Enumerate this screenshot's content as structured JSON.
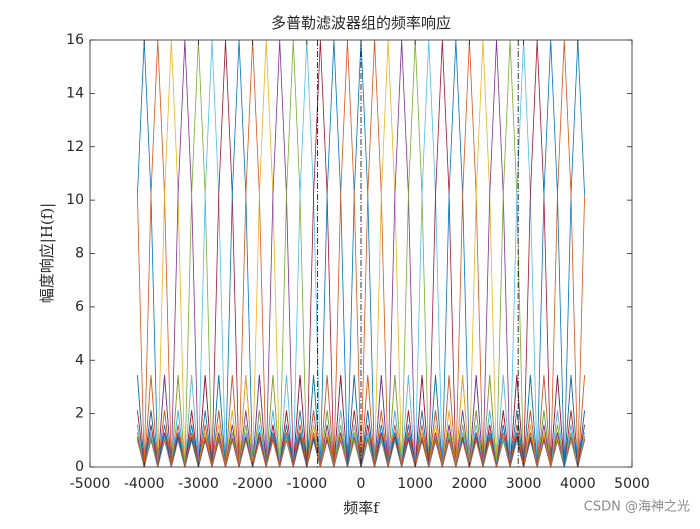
{
  "chart_data": {
    "type": "line",
    "title": "多普勒滤波器组的频率响应",
    "xlabel": "频率f",
    "ylabel": "幅度响应|H(f)|",
    "watermark": "CSDN @海神之光",
    "xlim": [
      -5000,
      5000
    ],
    "ylim": [
      0,
      16
    ],
    "xticks": [
      -5000,
      -4000,
      -3000,
      -2000,
      -1000,
      0,
      1000,
      2000,
      3000,
      4000,
      5000
    ],
    "yticks": [
      0,
      2,
      4,
      6,
      8,
      10,
      12,
      14,
      16
    ],
    "vlines": [
      -800,
      0,
      2900
    ],
    "vline_color": "#000000",
    "x": [
      -4125,
      -4000,
      -3875,
      -3750,
      -3625,
      -3500,
      -3375,
      -3250,
      -3125,
      -3000,
      -2875,
      -2750,
      -2625,
      -2500,
      -2375,
      -2250,
      -2125,
      -2000,
      -1875,
      -1750,
      -1625,
      -1500,
      -1375,
      -1250,
      -1125,
      -1000,
      -875,
      -750,
      -625,
      -500,
      -375,
      -250,
      -125,
      0,
      125,
      250,
      375,
      500,
      625,
      750,
      875,
      1000,
      1125,
      1250,
      1375,
      1500,
      1625,
      1750,
      1875,
      2000,
      2125,
      2250,
      2375,
      2500,
      2625,
      2750,
      2875,
      3000,
      3125,
      3250,
      3375,
      3500,
      3625,
      3750,
      3875,
      4000,
      4125
    ],
    "series": [
      {
        "color": "#0072BD",
        "values": [
          10.2,
          16,
          10.2,
          0,
          3.44,
          0,
          2.12,
          0,
          1.58,
          0,
          1.29,
          0,
          1.13,
          0,
          1.05,
          0,
          1,
          0,
          1,
          0,
          1.05,
          0,
          1.13,
          0,
          1.29,
          0,
          1.58,
          0,
          2.12,
          0,
          3.44,
          0,
          10.2,
          16,
          10.2,
          0,
          3.44,
          0,
          2.12,
          0,
          1.58,
          0,
          1.29,
          0,
          1.13,
          0,
          1.05,
          0,
          1,
          0,
          1,
          0,
          1.05,
          0,
          1.13,
          0,
          1.29,
          0,
          1.58,
          0,
          2.12,
          0,
          3.44,
          0,
          10.2,
          16,
          10.2
        ]
      },
      {
        "color": "#D95319",
        "values": [
          3.44,
          0,
          10.2,
          16,
          10.2,
          0,
          3.44,
          0,
          2.12,
          0,
          1.58,
          0,
          1.29,
          0,
          1.13,
          0,
          1.05,
          0,
          1,
          0,
          1,
          0,
          1.05,
          0,
          1.13,
          0,
          1.29,
          0,
          1.58,
          0,
          2.12,
          0,
          3.44,
          0,
          10.2,
          16,
          10.2,
          0,
          3.44,
          0,
          2.12,
          0,
          1.58,
          0,
          1.29,
          0,
          1.13,
          0,
          1.05,
          0,
          1,
          0,
          1,
          0,
          1.05,
          0,
          1.13,
          0,
          1.29,
          0,
          1.58,
          0,
          2.12,
          0,
          3.44,
          0,
          10.2
        ]
      },
      {
        "color": "#EDB120",
        "values": [
          2.12,
          0,
          3.44,
          0,
          10.2,
          16,
          10.2,
          0,
          3.44,
          0,
          2.12,
          0,
          1.58,
          0,
          1.29,
          0,
          1.13,
          0,
          1.05,
          0,
          1,
          0,
          1,
          0,
          1.05,
          0,
          1.13,
          0,
          1.29,
          0,
          1.58,
          0,
          2.12,
          0,
          3.44,
          0,
          10.2,
          16,
          10.2,
          0,
          3.44,
          0,
          2.12,
          0,
          1.58,
          0,
          1.29,
          0,
          1.13,
          0,
          1.05,
          0,
          1,
          0,
          1,
          0,
          1.05,
          0,
          1.13,
          0,
          1.29,
          0,
          1.58,
          0,
          2.12,
          0,
          3.44
        ]
      },
      {
        "color": "#7E2F8E",
        "values": [
          1.58,
          0,
          2.12,
          0,
          3.44,
          0,
          10.2,
          16,
          10.2,
          0,
          3.44,
          0,
          2.12,
          0,
          1.58,
          0,
          1.29,
          0,
          1.13,
          0,
          1.05,
          0,
          1,
          0,
          1,
          0,
          1.05,
          0,
          1.13,
          0,
          1.29,
          0,
          1.58,
          0,
          2.12,
          0,
          3.44,
          0,
          10.2,
          16,
          10.2,
          0,
          3.44,
          0,
          2.12,
          0,
          1.58,
          0,
          1.29,
          0,
          1.13,
          0,
          1.05,
          0,
          1,
          0,
          1,
          0,
          1.05,
          0,
          1.13,
          0,
          1.29,
          0,
          1.58,
          0,
          2.12
        ]
      },
      {
        "color": "#77AC30",
        "values": [
          1.29,
          0,
          1.58,
          0,
          2.12,
          0,
          3.44,
          0,
          10.2,
          16,
          10.2,
          0,
          3.44,
          0,
          2.12,
          0,
          1.58,
          0,
          1.29,
          0,
          1.13,
          0,
          1.05,
          0,
          1,
          0,
          1,
          0,
          1.05,
          0,
          1.13,
          0,
          1.29,
          0,
          1.58,
          0,
          2.12,
          0,
          3.44,
          0,
          10.2,
          16,
          10.2,
          0,
          3.44,
          0,
          2.12,
          0,
          1.58,
          0,
          1.29,
          0,
          1.13,
          0,
          1.05,
          0,
          1,
          0,
          1,
          0,
          1.05,
          0,
          1.13,
          0,
          1.29,
          0,
          1.58
        ]
      },
      {
        "color": "#4DBEEE",
        "values": [
          1.13,
          0,
          1.29,
          0,
          1.58,
          0,
          2.12,
          0,
          3.44,
          0,
          10.2,
          16,
          10.2,
          0,
          3.44,
          0,
          2.12,
          0,
          1.58,
          0,
          1.29,
          0,
          1.13,
          0,
          1.05,
          0,
          1,
          0,
          1,
          0,
          1.05,
          0,
          1.13,
          0,
          1.29,
          0,
          1.58,
          0,
          2.12,
          0,
          3.44,
          0,
          10.2,
          16,
          10.2,
          0,
          3.44,
          0,
          2.12,
          0,
          1.58,
          0,
          1.29,
          0,
          1.13,
          0,
          1.05,
          0,
          1,
          0,
          1,
          0,
          1.05,
          0,
          1.13,
          0,
          1.29
        ]
      },
      {
        "color": "#A2142F",
        "values": [
          1.05,
          0,
          1.13,
          0,
          1.29,
          0,
          1.58,
          0,
          2.12,
          0,
          3.44,
          0,
          10.2,
          16,
          10.2,
          0,
          3.44,
          0,
          2.12,
          0,
          1.58,
          0,
          1.29,
          0,
          1.13,
          0,
          1.05,
          0,
          1,
          0,
          1,
          0,
          1.05,
          0,
          1.13,
          0,
          1.29,
          0,
          1.58,
          0,
          2.12,
          0,
          3.44,
          0,
          10.2,
          16,
          10.2,
          0,
          3.44,
          0,
          2.12,
          0,
          1.58,
          0,
          1.29,
          0,
          1.13,
          0,
          1.05,
          0,
          1,
          0,
          1,
          0,
          1.05,
          0,
          1.13
        ]
      },
      {
        "color": "#0072BD",
        "values": [
          1,
          0,
          1.05,
          0,
          1.13,
          0,
          1.29,
          0,
          1.58,
          0,
          2.12,
          0,
          3.44,
          0,
          10.2,
          16,
          10.2,
          0,
          3.44,
          0,
          2.12,
          0,
          1.58,
          0,
          1.29,
          0,
          1.13,
          0,
          1.05,
          0,
          1,
          0,
          1,
          0,
          1.05,
          0,
          1.13,
          0,
          1.29,
          0,
          1.58,
          0,
          2.12,
          0,
          3.44,
          0,
          10.2,
          16,
          10.2,
          0,
          3.44,
          0,
          2.12,
          0,
          1.58,
          0,
          1.29,
          0,
          1.13,
          0,
          1.05,
          0,
          1,
          0,
          1,
          0,
          1.05
        ]
      },
      {
        "color": "#D95319",
        "values": [
          1,
          0,
          1,
          0,
          1.05,
          0,
          1.13,
          0,
          1.29,
          0,
          1.58,
          0,
          2.12,
          0,
          3.44,
          0,
          10.2,
          16,
          10.2,
          0,
          3.44,
          0,
          2.12,
          0,
          1.58,
          0,
          1.29,
          0,
          1.13,
          0,
          1.05,
          0,
          1,
          0,
          1,
          0,
          1.05,
          0,
          1.13,
          0,
          1.29,
          0,
          1.58,
          0,
          2.12,
          0,
          3.44,
          0,
          10.2,
          16,
          10.2,
          0,
          3.44,
          0,
          2.12,
          0,
          1.58,
          0,
          1.29,
          0,
          1.13,
          0,
          1.05,
          0,
          1,
          0,
          1
        ]
      },
      {
        "color": "#EDB120",
        "values": [
          1.05,
          0,
          1,
          0,
          1,
          0,
          1.05,
          0,
          1.13,
          0,
          1.29,
          0,
          1.58,
          0,
          2.12,
          0,
          3.44,
          0,
          10.2,
          16,
          10.2,
          0,
          3.44,
          0,
          2.12,
          0,
          1.58,
          0,
          1.29,
          0,
          1.13,
          0,
          1.05,
          0,
          1,
          0,
          1,
          0,
          1.05,
          0,
          1.13,
          0,
          1.29,
          0,
          1.58,
          0,
          2.12,
          0,
          3.44,
          0,
          10.2,
          16,
          10.2,
          0,
          3.44,
          0,
          2.12,
          0,
          1.58,
          0,
          1.29,
          0,
          1.13,
          0,
          1.05,
          0,
          1
        ]
      },
      {
        "color": "#7E2F8E",
        "values": [
          1.13,
          0,
          1.05,
          0,
          1,
          0,
          1,
          0,
          1.05,
          0,
          1.13,
          0,
          1.29,
          0,
          1.58,
          0,
          2.12,
          0,
          3.44,
          0,
          10.2,
          16,
          10.2,
          0,
          3.44,
          0,
          2.12,
          0,
          1.58,
          0,
          1.29,
          0,
          1.13,
          0,
          1.05,
          0,
          1,
          0,
          1,
          0,
          1.05,
          0,
          1.13,
          0,
          1.29,
          0,
          1.58,
          0,
          2.12,
          0,
          3.44,
          0,
          10.2,
          16,
          10.2,
          0,
          3.44,
          0,
          2.12,
          0,
          1.58,
          0,
          1.29,
          0,
          1.13,
          0,
          1.05
        ]
      },
      {
        "color": "#77AC30",
        "values": [
          1.29,
          0,
          1.13,
          0,
          1.05,
          0,
          1,
          0,
          1,
          0,
          1.05,
          0,
          1.13,
          0,
          1.29,
          0,
          1.58,
          0,
          2.12,
          0,
          3.44,
          0,
          10.2,
          16,
          10.2,
          0,
          3.44,
          0,
          2.12,
          0,
          1.58,
          0,
          1.29,
          0,
          1.13,
          0,
          1.05,
          0,
          1,
          0,
          1,
          0,
          1.05,
          0,
          1.13,
          0,
          1.29,
          0,
          1.58,
          0,
          2.12,
          0,
          3.44,
          0,
          10.2,
          16,
          10.2,
          0,
          3.44,
          0,
          2.12,
          0,
          1.58,
          0,
          1.29,
          0,
          1.13
        ]
      },
      {
        "color": "#4DBEEE",
        "values": [
          1.58,
          0,
          1.29,
          0,
          1.13,
          0,
          1.05,
          0,
          1,
          0,
          1,
          0,
          1.05,
          0,
          1.13,
          0,
          1.29,
          0,
          1.58,
          0,
          2.12,
          0,
          3.44,
          0,
          10.2,
          16,
          10.2,
          0,
          3.44,
          0,
          2.12,
          0,
          1.58,
          0,
          1.29,
          0,
          1.13,
          0,
          1.05,
          0,
          1,
          0,
          1,
          0,
          1.05,
          0,
          1.13,
          0,
          1.29,
          0,
          1.58,
          0,
          2.12,
          0,
          3.44,
          0,
          10.2,
          16,
          10.2,
          0,
          3.44,
          0,
          2.12,
          0,
          1.58,
          0,
          1.29
        ]
      },
      {
        "color": "#A2142F",
        "values": [
          2.12,
          0,
          1.58,
          0,
          1.29,
          0,
          1.13,
          0,
          1.05,
          0,
          1,
          0,
          1,
          0,
          1.05,
          0,
          1.13,
          0,
          1.29,
          0,
          1.58,
          0,
          2.12,
          0,
          3.44,
          0,
          10.2,
          16,
          10.2,
          0,
          3.44,
          0,
          2.12,
          0,
          1.58,
          0,
          1.29,
          0,
          1.13,
          0,
          1.05,
          0,
          1,
          0,
          1,
          0,
          1.05,
          0,
          1.13,
          0,
          1.29,
          0,
          1.58,
          0,
          2.12,
          0,
          3.44,
          0,
          10.2,
          16,
          10.2,
          0,
          3.44,
          0,
          2.12,
          0,
          1.58
        ]
      },
      {
        "color": "#0072BD",
        "values": [
          3.44,
          0,
          2.12,
          0,
          1.58,
          0,
          1.29,
          0,
          1.13,
          0,
          1.05,
          0,
          1,
          0,
          1,
          0,
          1.05,
          0,
          1.13,
          0,
          1.29,
          0,
          1.58,
          0,
          2.12,
          0,
          3.44,
          0,
          10.2,
          16,
          10.2,
          0,
          3.44,
          0,
          2.12,
          0,
          1.58,
          0,
          1.29,
          0,
          1.13,
          0,
          1.05,
          0,
          1,
          0,
          1,
          0,
          1.05,
          0,
          1.13,
          0,
          1.29,
          0,
          1.58,
          0,
          2.12,
          0,
          3.44,
          0,
          10.2,
          16,
          10.2,
          0,
          3.44,
          0,
          2.12
        ]
      },
      {
        "color": "#D95319",
        "values": [
          10.2,
          0,
          3.44,
          0,
          2.12,
          0,
          1.58,
          0,
          1.29,
          0,
          1.13,
          0,
          1.05,
          0,
          1,
          0,
          1,
          0,
          1.05,
          0,
          1.13,
          0,
          1.29,
          0,
          1.58,
          0,
          2.12,
          0,
          3.44,
          0,
          10.2,
          16,
          10.2,
          0,
          3.44,
          0,
          2.12,
          0,
          1.58,
          0,
          1.29,
          0,
          1.13,
          0,
          1.05,
          0,
          1,
          0,
          1,
          0,
          1.05,
          0,
          1.13,
          0,
          1.29,
          0,
          1.58,
          0,
          2.12,
          0,
          3.44,
          0,
          10.2,
          16,
          10.2,
          0,
          3.44
        ]
      }
    ]
  }
}
